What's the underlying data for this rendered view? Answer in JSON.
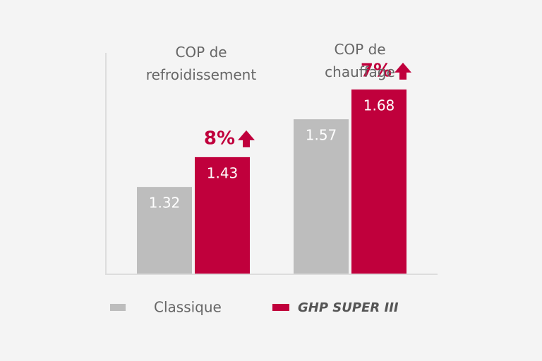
{
  "chart_data": {
    "type": "bar",
    "categories": [
      "COP de refroidissement",
      "COP de chauffage"
    ],
    "series": [
      {
        "name": "Classique",
        "color": "#bdbdbd",
        "values": [
          1.32,
          1.57
        ]
      },
      {
        "name": "GHP SUPER III",
        "color": "#c0003c",
        "values": [
          1.43,
          1.68
        ]
      }
    ],
    "annotations": [
      "8%",
      "7%"
    ],
    "ylim": [
      1.0,
      1.75
    ]
  }
}
